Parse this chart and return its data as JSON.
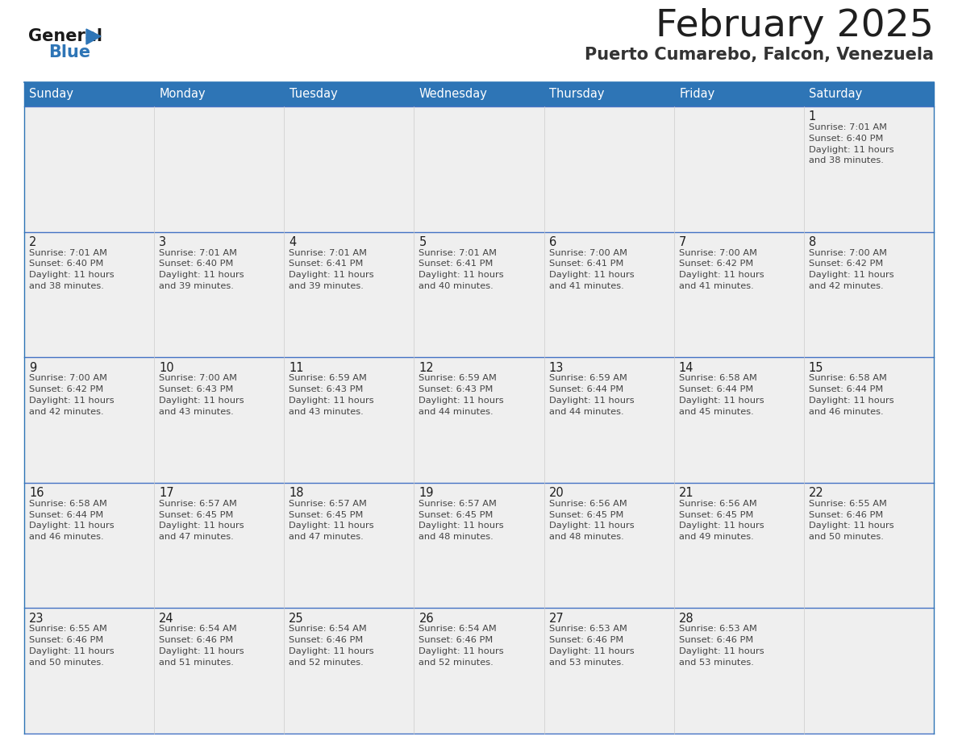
{
  "title": "February 2025",
  "subtitle": "Puerto Cumarebo, Falcon, Venezuela",
  "header_color": "#2E75B6",
  "header_text_color": "#FFFFFF",
  "cell_bg_color": "#EFEFEF",
  "border_color": "#2E75B6",
  "row_border_color": "#4472C4",
  "day_headers": [
    "Sunday",
    "Monday",
    "Tuesday",
    "Wednesday",
    "Thursday",
    "Friday",
    "Saturday"
  ],
  "title_color": "#1F1F1F",
  "subtitle_color": "#333333",
  "calendar_data": [
    [
      null,
      null,
      null,
      null,
      null,
      null,
      {
        "day": 1,
        "sunrise": "7:01 AM",
        "sunset": "6:40 PM",
        "daylight1": "11 hours",
        "daylight2": "and 38 minutes."
      }
    ],
    [
      {
        "day": 2,
        "sunrise": "7:01 AM",
        "sunset": "6:40 PM",
        "daylight1": "11 hours",
        "daylight2": "and 38 minutes."
      },
      {
        "day": 3,
        "sunrise": "7:01 AM",
        "sunset": "6:40 PM",
        "daylight1": "11 hours",
        "daylight2": "and 39 minutes."
      },
      {
        "day": 4,
        "sunrise": "7:01 AM",
        "sunset": "6:41 PM",
        "daylight1": "11 hours",
        "daylight2": "and 39 minutes."
      },
      {
        "day": 5,
        "sunrise": "7:01 AM",
        "sunset": "6:41 PM",
        "daylight1": "11 hours",
        "daylight2": "and 40 minutes."
      },
      {
        "day": 6,
        "sunrise": "7:00 AM",
        "sunset": "6:41 PM",
        "daylight1": "11 hours",
        "daylight2": "and 41 minutes."
      },
      {
        "day": 7,
        "sunrise": "7:00 AM",
        "sunset": "6:42 PM",
        "daylight1": "11 hours",
        "daylight2": "and 41 minutes."
      },
      {
        "day": 8,
        "sunrise": "7:00 AM",
        "sunset": "6:42 PM",
        "daylight1": "11 hours",
        "daylight2": "and 42 minutes."
      }
    ],
    [
      {
        "day": 9,
        "sunrise": "7:00 AM",
        "sunset": "6:42 PM",
        "daylight1": "11 hours",
        "daylight2": "and 42 minutes."
      },
      {
        "day": 10,
        "sunrise": "7:00 AM",
        "sunset": "6:43 PM",
        "daylight1": "11 hours",
        "daylight2": "and 43 minutes."
      },
      {
        "day": 11,
        "sunrise": "6:59 AM",
        "sunset": "6:43 PM",
        "daylight1": "11 hours",
        "daylight2": "and 43 minutes."
      },
      {
        "day": 12,
        "sunrise": "6:59 AM",
        "sunset": "6:43 PM",
        "daylight1": "11 hours",
        "daylight2": "and 44 minutes."
      },
      {
        "day": 13,
        "sunrise": "6:59 AM",
        "sunset": "6:44 PM",
        "daylight1": "11 hours",
        "daylight2": "and 44 minutes."
      },
      {
        "day": 14,
        "sunrise": "6:58 AM",
        "sunset": "6:44 PM",
        "daylight1": "11 hours",
        "daylight2": "and 45 minutes."
      },
      {
        "day": 15,
        "sunrise": "6:58 AM",
        "sunset": "6:44 PM",
        "daylight1": "11 hours",
        "daylight2": "and 46 minutes."
      }
    ],
    [
      {
        "day": 16,
        "sunrise": "6:58 AM",
        "sunset": "6:44 PM",
        "daylight1": "11 hours",
        "daylight2": "and 46 minutes."
      },
      {
        "day": 17,
        "sunrise": "6:57 AM",
        "sunset": "6:45 PM",
        "daylight1": "11 hours",
        "daylight2": "and 47 minutes."
      },
      {
        "day": 18,
        "sunrise": "6:57 AM",
        "sunset": "6:45 PM",
        "daylight1": "11 hours",
        "daylight2": "and 47 minutes."
      },
      {
        "day": 19,
        "sunrise": "6:57 AM",
        "sunset": "6:45 PM",
        "daylight1": "11 hours",
        "daylight2": "and 48 minutes."
      },
      {
        "day": 20,
        "sunrise": "6:56 AM",
        "sunset": "6:45 PM",
        "daylight1": "11 hours",
        "daylight2": "and 48 minutes."
      },
      {
        "day": 21,
        "sunrise": "6:56 AM",
        "sunset": "6:45 PM",
        "daylight1": "11 hours",
        "daylight2": "and 49 minutes."
      },
      {
        "day": 22,
        "sunrise": "6:55 AM",
        "sunset": "6:46 PM",
        "daylight1": "11 hours",
        "daylight2": "and 50 minutes."
      }
    ],
    [
      {
        "day": 23,
        "sunrise": "6:55 AM",
        "sunset": "6:46 PM",
        "daylight1": "11 hours",
        "daylight2": "and 50 minutes."
      },
      {
        "day": 24,
        "sunrise": "6:54 AM",
        "sunset": "6:46 PM",
        "daylight1": "11 hours",
        "daylight2": "and 51 minutes."
      },
      {
        "day": 25,
        "sunrise": "6:54 AM",
        "sunset": "6:46 PM",
        "daylight1": "11 hours",
        "daylight2": "and 52 minutes."
      },
      {
        "day": 26,
        "sunrise": "6:54 AM",
        "sunset": "6:46 PM",
        "daylight1": "11 hours",
        "daylight2": "and 52 minutes."
      },
      {
        "day": 27,
        "sunrise": "6:53 AM",
        "sunset": "6:46 PM",
        "daylight1": "11 hours",
        "daylight2": "and 53 minutes."
      },
      {
        "day": 28,
        "sunrise": "6:53 AM",
        "sunset": "6:46 PM",
        "daylight1": "11 hours",
        "daylight2": "and 53 minutes."
      },
      null
    ]
  ],
  "logo_color_general": "#1a1a1a",
  "logo_color_blue": "#2E75B6",
  "logo_triangle_color": "#2E75B6",
  "fig_width": 11.88,
  "fig_height": 9.18,
  "dpi": 100
}
